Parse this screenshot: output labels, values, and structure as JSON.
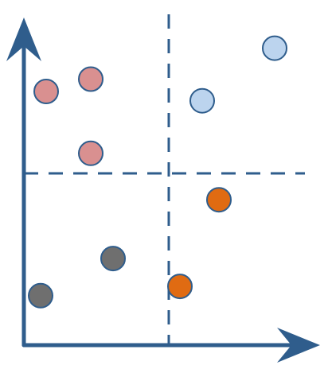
{
  "colors": {
    "axis": "#2F5D8C",
    "guide": "#2F5D8C",
    "pink_fill": "#D99090",
    "blue_fill": "#BCD4EE",
    "orange_fill": "#E06B12",
    "gray_fill": "#6F6F6F",
    "stroke": "#2F5D8C"
  },
  "groups": [
    {
      "name": "pink",
      "icon": "circle",
      "points": [
        {
          "x": 0.08,
          "y": 0.82
        },
        {
          "x": 0.24,
          "y": 0.62
        },
        {
          "x": 0.24,
          "y": 0.86
        }
      ]
    },
    {
      "name": "blue",
      "icon": "circle",
      "points": [
        {
          "x": 0.64,
          "y": 0.79
        },
        {
          "x": 0.9,
          "y": 0.96
        }
      ]
    },
    {
      "name": "orange",
      "icon": "circle",
      "points": [
        {
          "x": 0.7,
          "y": 0.47
        },
        {
          "x": 0.56,
          "y": 0.19
        }
      ]
    },
    {
      "name": "gray",
      "icon": "circle",
      "points": [
        {
          "x": 0.06,
          "y": 0.16
        },
        {
          "x": 0.32,
          "y": 0.28
        }
      ]
    }
  ]
}
